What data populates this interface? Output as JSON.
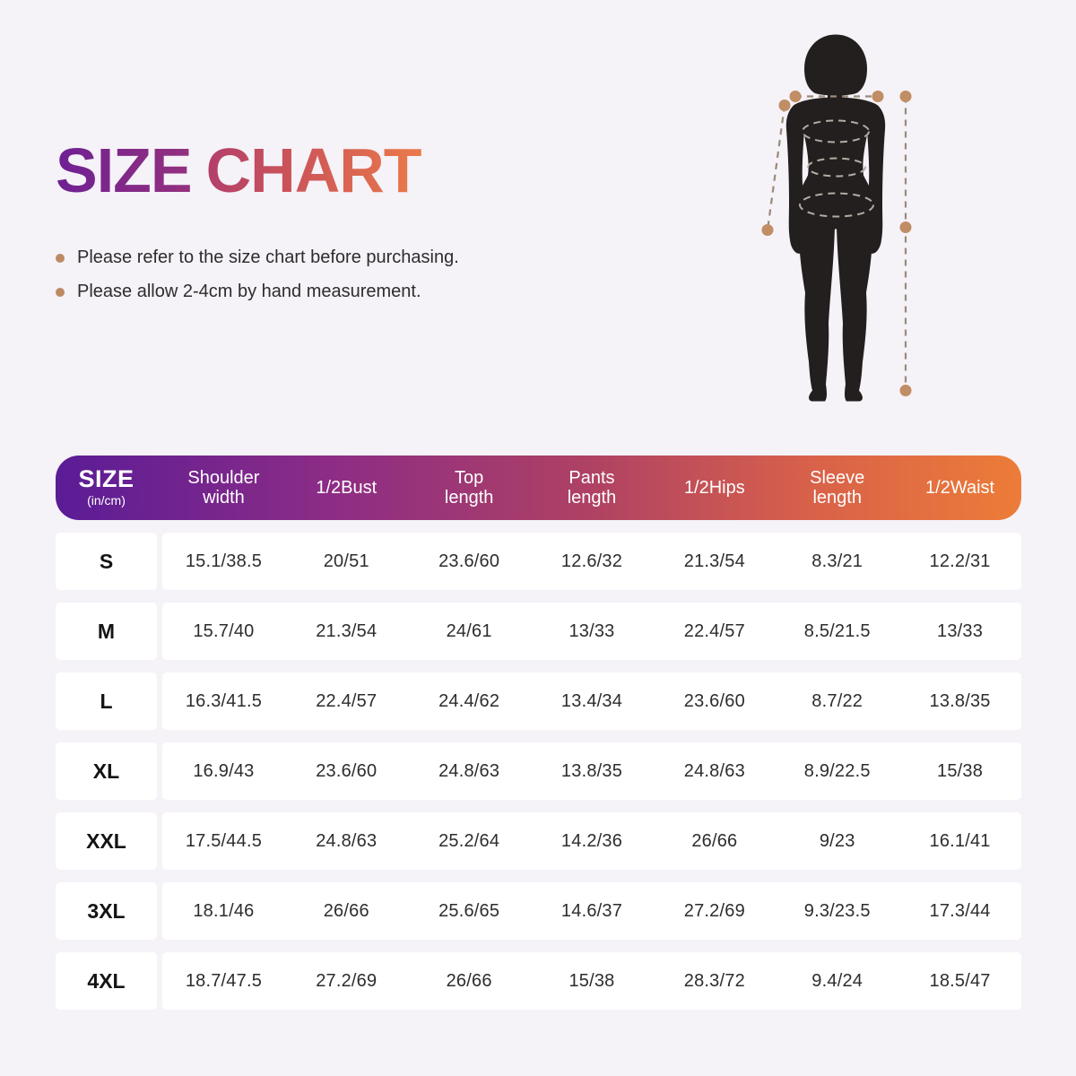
{
  "title": {
    "word1": "SIZE",
    "word2": "CHART"
  },
  "notes": [
    "Please refer to the size chart before purchasing.",
    "Please allow 2-4cm by hand measurement."
  ],
  "figure": {
    "icon": "female-body-silhouette-with-measurement-lines"
  },
  "colors": {
    "background": "#f5f2f8",
    "row_background": "#ffffff",
    "header_gradient_start": "#5a1c96",
    "header_gradient_end": "#ec7c38",
    "title_gradient_start": "#6e2093",
    "title_gradient_end": "#ea7a4a",
    "bullet_dot": "#bd8a62",
    "measurement_dot": "#c18d64",
    "silhouette": "#231f1e"
  },
  "table": {
    "header": {
      "size_label": "SIZE",
      "size_unit": "(in/cm)",
      "columns": [
        "Shoulder\nwidth",
        "1/2Bust",
        "Top\nlength",
        "Pants\nlength",
        "1/2Hips",
        "Sleeve\nlength",
        "1/2Waist"
      ]
    }
  },
  "chart_data": {
    "type": "table",
    "title": "SIZE CHART",
    "unit": "in/cm",
    "columns": [
      "SIZE",
      "Shoulder width",
      "1/2Bust",
      "Top length",
      "Pants length",
      "1/2Hips",
      "Sleeve length",
      "1/2Waist"
    ],
    "rows": [
      [
        "S",
        "15.1/38.5",
        "20/51",
        "23.6/60",
        "12.6/32",
        "21.3/54",
        "8.3/21",
        "12.2/31"
      ],
      [
        "M",
        "15.7/40",
        "21.3/54",
        "24/61",
        "13/33",
        "22.4/57",
        "8.5/21.5",
        "13/33"
      ],
      [
        "L",
        "16.3/41.5",
        "22.4/57",
        "24.4/62",
        "13.4/34",
        "23.6/60",
        "8.7/22",
        "13.8/35"
      ],
      [
        "XL",
        "16.9/43",
        "23.6/60",
        "24.8/63",
        "13.8/35",
        "24.8/63",
        "8.9/22.5",
        "15/38"
      ],
      [
        "XXL",
        "17.5/44.5",
        "24.8/63",
        "25.2/64",
        "14.2/36",
        "26/66",
        "9/23",
        "16.1/41"
      ],
      [
        "3XL",
        "18.1/46",
        "26/66",
        "25.6/65",
        "14.6/37",
        "27.2/69",
        "9.3/23.5",
        "17.3/44"
      ],
      [
        "4XL",
        "18.7/47.5",
        "27.2/69",
        "26/66",
        "15/38",
        "28.3/72",
        "9.4/24",
        "18.5/47"
      ]
    ]
  }
}
